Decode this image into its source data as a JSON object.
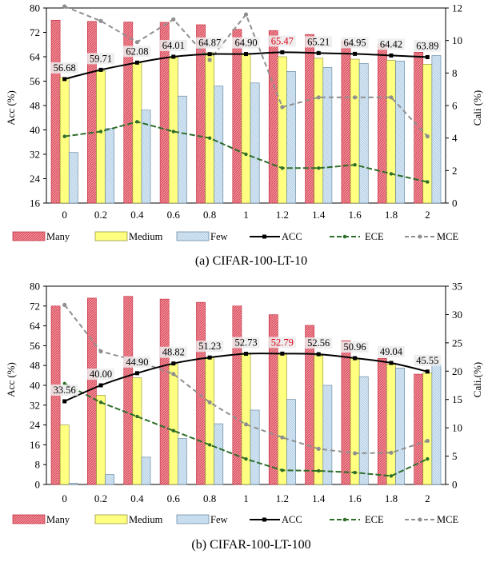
{
  "colors": {
    "many": "#f28b96",
    "medium": "#ffff80",
    "few": "#d4e6f4",
    "acc": "#000000",
    "ece": "#2e6e2a",
    "mce": "#8f8f8f",
    "highlight": "#e0001a",
    "label_bg": "#ececec"
  },
  "legend": [
    "Many",
    "Medium",
    "Few",
    "ACC",
    "ECE",
    "MCE"
  ],
  "chart_data": [
    {
      "type": "bar",
      "caption": "(a) CIFAR-100-LT-10",
      "ylabel": "Acc (%)",
      "y2label": "Cali (%)",
      "categories": [
        "0",
        "0.2",
        "0.4",
        "0.6",
        "0.8",
        "1",
        "1.2",
        "1.4",
        "1.6",
        "1.8",
        "2"
      ],
      "ylim": [
        16,
        80
      ],
      "yticks": [
        "16",
        "24",
        "32",
        "40",
        "48",
        "56",
        "64",
        "72",
        "80"
      ],
      "y2lim": [
        0,
        12
      ],
      "y2ticks": [
        "0",
        "2",
        "4",
        "6",
        "8",
        "10",
        "12"
      ],
      "series": [
        {
          "name": "Many",
          "values": [
            76.0,
            75.6,
            75.4,
            75.3,
            74.5,
            73.0,
            72.6,
            71.3,
            69.1,
            68.0,
            65.5
          ]
        },
        {
          "name": "Medium",
          "values": [
            57.2,
            59.4,
            62.0,
            63.9,
            65.3,
            65.0,
            64.0,
            63.5,
            63.2,
            62.8,
            61.5
          ]
        },
        {
          "name": "Few",
          "values": [
            32.6,
            40.5,
            46.5,
            51.1,
            54.4,
            55.4,
            59.2,
            60.5,
            61.8,
            62.6,
            64.4
          ]
        },
        {
          "name": "ACC",
          "values": [
            56.68,
            59.71,
            62.08,
            64.01,
            64.87,
            64.9,
            65.47,
            65.21,
            64.95,
            64.42,
            63.89
          ]
        },
        {
          "name": "ECE",
          "values": [
            4.1,
            4.4,
            5.0,
            4.4,
            4.0,
            3.0,
            2.15,
            2.15,
            2.35,
            1.8,
            1.3
          ]
        },
        {
          "name": "MCE",
          "values": [
            12.1,
            11.2,
            9.9,
            11.3,
            8.8,
            11.6,
            5.9,
            6.5,
            6.5,
            6.5,
            4.1
          ]
        }
      ],
      "data_labels": [
        "56.68",
        "59.71",
        "62.08",
        "64.01",
        "64.87",
        "64.90",
        "65.47",
        "65.21",
        "64.95",
        "64.42",
        "63.89"
      ],
      "highlight_index": 6
    },
    {
      "type": "bar",
      "caption": "(b) CIFAR-100-LT-100",
      "ylabel": "Acc (%)",
      "y2label": "Cali.(%)",
      "categories": [
        "0",
        "0.2",
        "0.4",
        "0.6",
        "0.8",
        "1",
        "1.2",
        "1.4",
        "1.6",
        "1.8",
        "2"
      ],
      "ylim": [
        0,
        80
      ],
      "yticks": [
        "0",
        "8",
        "16",
        "24",
        "32",
        "40",
        "48",
        "56",
        "64",
        "72",
        "80"
      ],
      "y2lim": [
        0,
        35
      ],
      "y2ticks": [
        "0",
        "5",
        "10",
        "15",
        "20",
        "25",
        "30",
        "35"
      ],
      "series": [
        {
          "name": "Many",
          "values": [
            72.0,
            75.2,
            75.9,
            74.8,
            73.5,
            72.0,
            68.5,
            64.2,
            58.0,
            50.9,
            44.5
          ]
        },
        {
          "name": "Medium",
          "values": [
            24.0,
            36.0,
            43.0,
            48.5,
            51.3,
            53.0,
            53.0,
            52.0,
            51.0,
            48.5,
            45.0
          ]
        },
        {
          "name": "Few",
          "values": [
            0.5,
            4.0,
            11.0,
            18.5,
            24.5,
            30.0,
            34.3,
            40.0,
            43.5,
            47.0,
            48.5
          ]
        },
        {
          "name": "ACC",
          "values": [
            33.56,
            40.0,
            44.9,
            48.82,
            51.23,
            52.73,
            52.79,
            52.56,
            50.96,
            49.04,
            45.55
          ]
        },
        {
          "name": "ECE",
          "values": [
            17.8,
            14.5,
            12.0,
            9.5,
            7.0,
            4.5,
            2.5,
            2.4,
            2.1,
            1.5,
            4.5
          ]
        },
        {
          "name": "MCE",
          "values": [
            31.7,
            23.5,
            21.8,
            19.5,
            14.5,
            10.6,
            8.3,
            6.3,
            5.5,
            5.6,
            7.7
          ]
        }
      ],
      "data_labels": [
        "33.56",
        "40.00",
        "44.90",
        "48.82",
        "51.23",
        "52.73",
        "52.79",
        "52.56",
        "50.96",
        "49.04",
        "45.55"
      ],
      "highlight_index": 6
    }
  ]
}
